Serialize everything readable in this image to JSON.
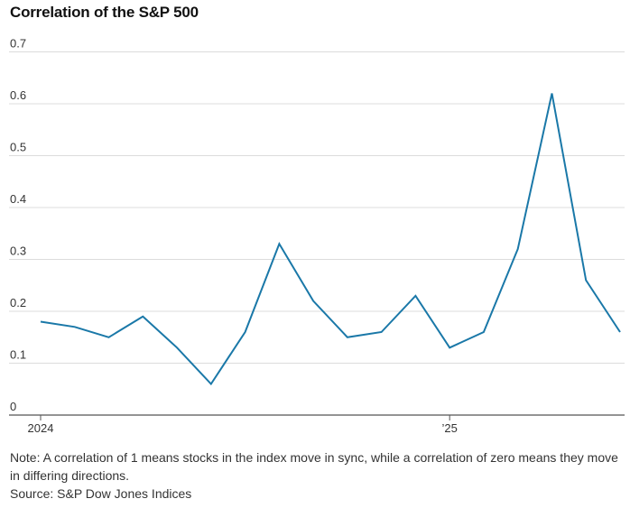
{
  "chart_data": {
    "type": "line",
    "title": "Correlation of the S&P 500",
    "xlabel": "",
    "ylabel": "",
    "ylim": [
      0,
      0.7
    ],
    "yticks": [
      "0",
      "0.1",
      "0.2",
      "0.3",
      "0.4",
      "0.5",
      "0.6",
      "0.7"
    ],
    "xticks": [
      {
        "label": "2024",
        "index": 0
      },
      {
        "label": "’25",
        "index": 12
      }
    ],
    "grid": true,
    "series": [
      {
        "color": "#1a78a8",
        "values": [
          0.18,
          0.17,
          0.15,
          0.19,
          0.13,
          0.06,
          0.16,
          0.33,
          0.22,
          0.15,
          0.16,
          0.23,
          0.13,
          0.16,
          0.32,
          0.62,
          0.26,
          0.16
        ]
      }
    ]
  },
  "footer": {
    "note": "Note: A correlation of 1 means stocks in the index move in sync, while a correlation of zero means they move in differing directions.",
    "source": "Source: S&P Dow Jones Indices"
  }
}
